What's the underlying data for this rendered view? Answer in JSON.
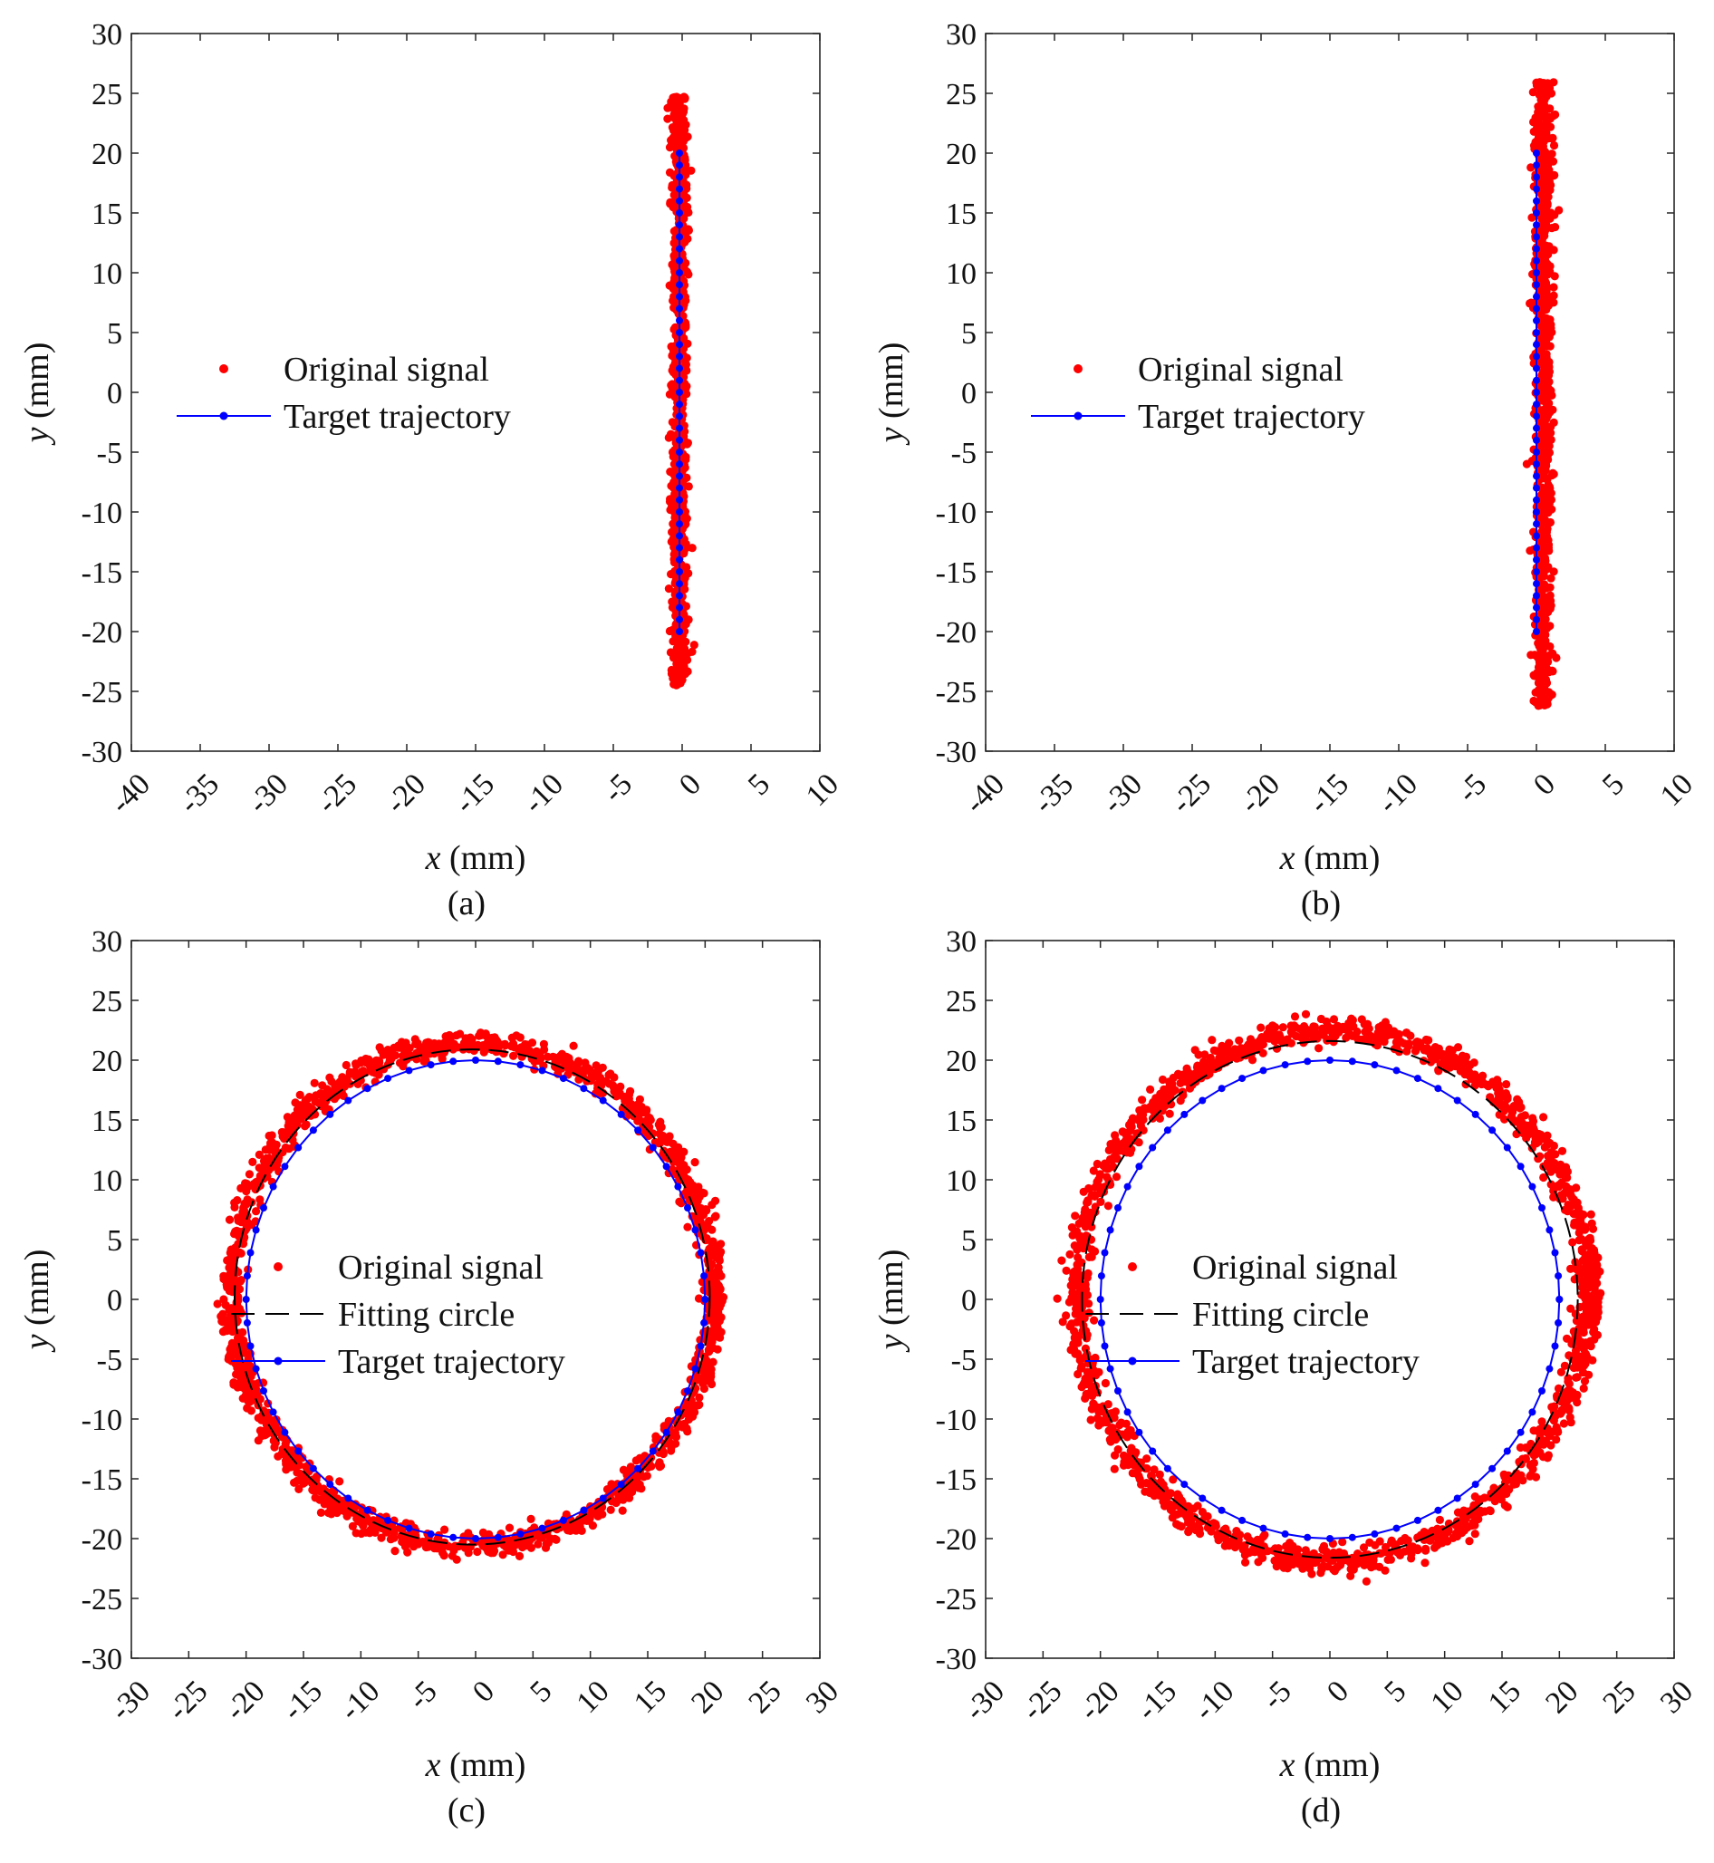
{
  "chart_data": [
    {
      "type": "scatter",
      "panel_label": "(a)",
      "xlabel_var": "x",
      "xlabel_unit": " (mm)",
      "ylabel_var": "y",
      "ylabel_unit": " (mm)",
      "xlim": [
        -40,
        10
      ],
      "ylim": [
        -30,
        30
      ],
      "xticks": [
        -40,
        -35,
        -30,
        -25,
        -20,
        -15,
        -10,
        -5,
        0,
        5,
        10
      ],
      "yticks": [
        -30,
        -25,
        -20,
        -15,
        -10,
        -5,
        0,
        5,
        10,
        15,
        20,
        25,
        30
      ],
      "grid": false,
      "legend_placement": "center-left",
      "signal": {
        "shape": "line",
        "x_center": -0.2,
        "x_spread": 0.55,
        "y_range": [
          -24.5,
          24.7
        ],
        "n_points": 900,
        "seed": 11
      },
      "fitting_circle": null,
      "target": {
        "shape": "line",
        "x": -0.2,
        "y_range": [
          -20,
          20
        ],
        "n_markers": 41
      },
      "series": [
        {
          "name": "Original signal",
          "color": "#ff0000",
          "style": "dots"
        },
        {
          "name": "Target trajectory",
          "color": "#0000ff",
          "style": "line-markers"
        }
      ]
    },
    {
      "type": "scatter",
      "panel_label": "(b)",
      "xlabel_var": "x",
      "xlabel_unit": " (mm)",
      "ylabel_var": "y",
      "ylabel_unit": " (mm)",
      "xlim": [
        -40,
        10
      ],
      "ylim": [
        -30,
        30
      ],
      "xticks": [
        -40,
        -35,
        -30,
        -25,
        -20,
        -15,
        -10,
        -5,
        0,
        5,
        10
      ],
      "yticks": [
        -30,
        -25,
        -20,
        -15,
        -10,
        -5,
        0,
        5,
        10,
        15,
        20,
        25,
        30
      ],
      "grid": false,
      "legend_placement": "center-left",
      "signal": {
        "shape": "line",
        "x_center": 0.5,
        "x_spread": 0.6,
        "y_range": [
          -26.3,
          26.0
        ],
        "n_points": 900,
        "seed": 23
      },
      "fitting_circle": null,
      "target": {
        "shape": "line",
        "x": 0.0,
        "y_range": [
          -20,
          20
        ],
        "n_markers": 41
      },
      "series": [
        {
          "name": "Original signal",
          "color": "#ff0000",
          "style": "dots"
        },
        {
          "name": "Target trajectory",
          "color": "#0000ff",
          "style": "line-markers"
        }
      ]
    },
    {
      "type": "scatter",
      "panel_label": "(c)",
      "xlabel_var": "x",
      "xlabel_unit": " (mm)",
      "ylabel_var": "y",
      "ylabel_unit": " (mm)",
      "xlim": [
        -30,
        30
      ],
      "ylim": [
        -30,
        30
      ],
      "xticks": [
        -30,
        -25,
        -20,
        -15,
        -10,
        -5,
        0,
        5,
        10,
        15,
        20,
        25,
        30
      ],
      "yticks": [
        -30,
        -25,
        -20,
        -15,
        -10,
        -5,
        0,
        5,
        10,
        15,
        20,
        25,
        30
      ],
      "grid": false,
      "legend_placement": "center",
      "signal": {
        "shape": "circle",
        "cx": -0.3,
        "cy": 0.4,
        "r": 21.0,
        "r_spread": 0.7,
        "n_points": 1500,
        "seed": 37,
        "bump": {
          "cx": 20.8,
          "cy": 1.0,
          "w": 0.5,
          "h": 3.0,
          "n": 50
        }
      },
      "fitting_circle": {
        "cx": -0.3,
        "cy": 0.2,
        "r": 20.7
      },
      "target": {
        "shape": "circle",
        "cx": 0,
        "cy": 0,
        "r": 20,
        "n_markers": 64
      },
      "series": [
        {
          "name": "Original signal",
          "color": "#ff0000",
          "style": "dots"
        },
        {
          "name": "Fitting circle",
          "color": "#000000",
          "style": "dashed"
        },
        {
          "name": "Target trajectory",
          "color": "#0000ff",
          "style": "line-markers"
        }
      ]
    },
    {
      "type": "scatter",
      "panel_label": "(d)",
      "xlabel_var": "x",
      "xlabel_unit": " (mm)",
      "ylabel_var": "y",
      "ylabel_unit": " (mm)",
      "xlim": [
        -30,
        30
      ],
      "ylim": [
        -30,
        30
      ],
      "xticks": [
        -30,
        -25,
        -20,
        -15,
        -10,
        -5,
        0,
        5,
        10,
        15,
        20,
        25,
        30
      ],
      "yticks": [
        -30,
        -25,
        -20,
        -15,
        -10,
        -5,
        0,
        5,
        10,
        15,
        20,
        25,
        30
      ],
      "grid": false,
      "legend_placement": "center",
      "signal": {
        "shape": "circle",
        "cx": 0.2,
        "cy": 0.3,
        "r": 22.2,
        "r_spread": 0.75,
        "n_points": 1500,
        "seed": 53,
        "bump": {
          "cx": 22.8,
          "cy": 1.0,
          "w": 0.6,
          "h": 3.0,
          "n": 55
        }
      },
      "fitting_circle": {
        "cx": 0.0,
        "cy": 0.0,
        "r": 21.6
      },
      "target": {
        "shape": "circle",
        "cx": 0,
        "cy": 0,
        "r": 20,
        "n_markers": 64
      },
      "series": [
        {
          "name": "Original signal",
          "color": "#ff0000",
          "style": "dots"
        },
        {
          "name": "Fitting circle",
          "color": "#000000",
          "style": "dashed"
        },
        {
          "name": "Target trajectory",
          "color": "#0000ff",
          "style": "line-markers"
        }
      ]
    }
  ]
}
